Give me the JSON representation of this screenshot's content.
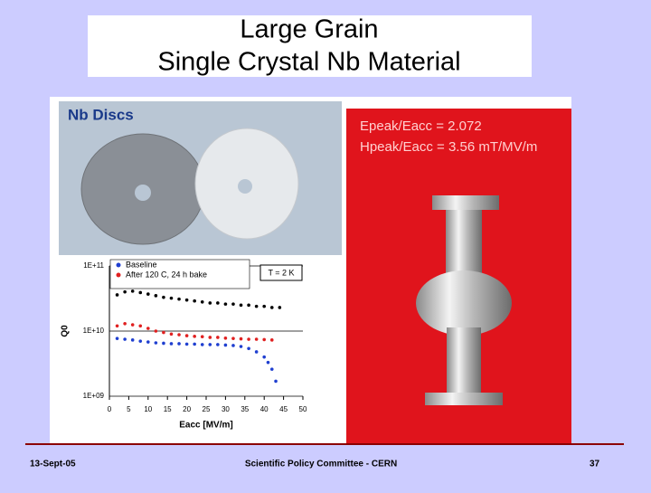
{
  "slide": {
    "title_line1": "Large Grain",
    "title_line2": "Single Crystal Nb Material",
    "photo_left_label": "Nb Discs",
    "photo_right_line1": "Epeak/Eacc = 2.072",
    "photo_right_line2": "Hpeak/Eacc = 3.56 mT/MV/m",
    "footer_left": "13-Sept-05",
    "footer_center": "Scientific Policy Committee - CERN",
    "footer_right": "37"
  },
  "chart_data": {
    "type": "scatter",
    "x_label": "Eacc [MV/m]",
    "y_label": "Q0",
    "annotation": "T = 2 K",
    "log_y": true,
    "grid": true,
    "legend": "top-left",
    "xlim": [
      0,
      50
    ],
    "xticks": [
      0,
      5,
      10,
      15,
      20,
      25,
      30,
      35,
      40,
      45,
      50
    ],
    "ylim": [
      1000000000,
      100000000000
    ],
    "yticks": [
      {
        "value": 1000000000,
        "label": "1E+09"
      },
      {
        "value": 10000000000,
        "label": "1E+10"
      },
      {
        "value": 100000000000,
        "label": "1E+11"
      }
    ],
    "series": [
      {
        "color": "#000000",
        "x": [
          2,
          4,
          6,
          8,
          10,
          12,
          14,
          16,
          18,
          20,
          22,
          24,
          26,
          28,
          30,
          32,
          34,
          36,
          38,
          40,
          42,
          44
        ],
        "values": [
          36000000000,
          40000000000,
          41000000000,
          39000000000,
          37000000000,
          35000000000,
          33000000000,
          32000000000,
          31000000000,
          30000000000,
          29000000000,
          28000000000,
          27000000000,
          27000000000,
          26000000000,
          26000000000,
          25000000000,
          25000000000,
          24000000000,
          24000000000,
          23000000000,
          23000000000
        ]
      },
      {
        "name": "After 120 C, 24 h bake",
        "color": "#e02020",
        "x": [
          2,
          4,
          6,
          8,
          10,
          12,
          14,
          16,
          18,
          20,
          22,
          24,
          26,
          28,
          30,
          32,
          34,
          36,
          38,
          40,
          42
        ],
        "values": [
          12000000000,
          13000000000,
          12500000000,
          12000000000,
          11000000000,
          10000000000,
          9500000000,
          9000000000,
          8800000000,
          8500000000,
          8300000000,
          8200000000,
          8000000000,
          8000000000,
          7800000000,
          7700000000,
          7600000000,
          7500000000,
          7500000000,
          7400000000,
          7300000000
        ]
      },
      {
        "name": "Baseline",
        "color": "#1f3fd0",
        "x": [
          2,
          4,
          6,
          8,
          10,
          12,
          14,
          16,
          18,
          20,
          22,
          24,
          26,
          28,
          30,
          32,
          34,
          36,
          38,
          40,
          41,
          42,
          43
        ],
        "values": [
          7700000000,
          7500000000,
          7300000000,
          7000000000,
          6800000000,
          6600000000,
          6500000000,
          6400000000,
          6400000000,
          6300000000,
          6300000000,
          6200000000,
          6200000000,
          6200000000,
          6100000000,
          6000000000,
          5800000000,
          5400000000,
          4800000000,
          4000000000,
          3300000000,
          2600000000,
          1700000000
        ]
      }
    ]
  }
}
